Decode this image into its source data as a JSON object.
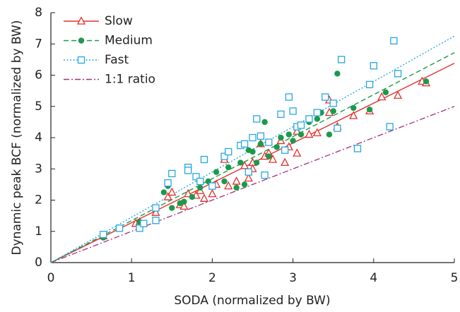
{
  "chart_data": {
    "type": "scatter",
    "xlabel": "SODA (normalized by BW)",
    "ylabel": "Dynamic peak BCF (normalized by BW)",
    "xlim": [
      0,
      5
    ],
    "ylim": [
      0,
      8
    ],
    "xticks": [
      0,
      1,
      2,
      3,
      4,
      5
    ],
    "yticks": [
      0,
      1,
      2,
      3,
      4,
      5,
      6,
      7,
      8
    ],
    "legend": "upper left",
    "series": [
      {
        "name": "Slow",
        "color": "#e3302d",
        "marker": "triangle",
        "linestyle": "solid",
        "x": [
          0.65,
          1.05,
          1.1,
          1.3,
          1.45,
          1.5,
          1.6,
          1.65,
          1.7,
          1.8,
          1.85,
          1.9,
          2.0,
          2.05,
          2.15,
          2.2,
          2.3,
          2.4,
          2.45,
          2.5,
          2.5,
          2.6,
          2.65,
          2.7,
          2.75,
          2.85,
          2.9,
          2.95,
          3.05,
          3.05,
          3.2,
          3.3,
          3.45,
          3.45,
          3.55,
          3.75,
          3.95,
          4.1,
          4.3,
          4.6,
          4.65
        ],
        "values": [
          0.85,
          1.25,
          1.3,
          1.6,
          2.1,
          2.25,
          1.85,
          1.8,
          2.2,
          2.15,
          2.3,
          2.05,
          2.2,
          2.5,
          3.3,
          2.45,
          2.6,
          3.1,
          2.7,
          3.2,
          3.0,
          3.8,
          3.4,
          3.5,
          3.3,
          3.9,
          3.2,
          3.7,
          4.2,
          3.5,
          4.1,
          4.15,
          5.2,
          4.8,
          4.35,
          4.7,
          4.85,
          5.3,
          5.35,
          5.8,
          5.75
        ],
        "fit": {
          "x": [
            0,
            5
          ],
          "values": [
            0,
            6.38
          ]
        }
      },
      {
        "name": "Medium",
        "color": "#1b9a4a",
        "marker": "circle",
        "linestyle": "dashed",
        "x": [
          0.65,
          1.1,
          1.15,
          1.4,
          1.45,
          1.5,
          1.6,
          1.65,
          1.75,
          1.8,
          1.85,
          1.95,
          2.05,
          2.15,
          2.2,
          2.3,
          2.35,
          2.4,
          2.45,
          2.5,
          2.55,
          2.6,
          2.65,
          2.7,
          2.8,
          2.85,
          2.95,
          3.0,
          3.1,
          3.2,
          3.3,
          3.35,
          3.45,
          3.5,
          3.55,
          3.75,
          3.95,
          4.15,
          4.65
        ],
        "values": [
          0.8,
          1.3,
          1.25,
          2.25,
          2.45,
          1.75,
          1.9,
          1.95,
          2.1,
          2.75,
          2.4,
          2.6,
          2.9,
          2.6,
          3.05,
          2.4,
          3.2,
          2.5,
          3.6,
          3.55,
          3.2,
          3.8,
          4.5,
          3.4,
          3.7,
          4.0,
          4.1,
          3.9,
          4.1,
          4.5,
          4.6,
          4.8,
          4.1,
          4.85,
          6.05,
          4.95,
          4.9,
          5.45,
          5.8
        ],
        "fit": {
          "x": [
            0,
            5
          ],
          "values": [
            0,
            6.72
          ]
        }
      },
      {
        "name": "Fast",
        "color": "#27a7df",
        "marker": "square",
        "linestyle": "dotted",
        "x": [
          0.65,
          0.85,
          1.1,
          1.15,
          1.3,
          1.3,
          1.5,
          1.45,
          1.7,
          1.7,
          1.8,
          1.85,
          1.9,
          2.0,
          2.15,
          2.2,
          2.35,
          2.4,
          2.45,
          2.5,
          2.55,
          2.6,
          2.65,
          2.7,
          2.85,
          2.9,
          2.95,
          3.0,
          3.05,
          3.1,
          3.2,
          3.3,
          3.4,
          3.5,
          3.55,
          3.6,
          3.8,
          3.95,
          4.0,
          4.2,
          4.25,
          4.3
        ],
        "values": [
          0.9,
          1.1,
          1.1,
          1.25,
          1.75,
          1.35,
          2.85,
          2.55,
          3.05,
          2.95,
          2.75,
          2.6,
          3.3,
          2.45,
          3.4,
          3.55,
          3.75,
          3.8,
          2.9,
          4.0,
          4.6,
          4.05,
          2.8,
          3.85,
          4.75,
          3.6,
          5.3,
          4.85,
          4.35,
          4.4,
          4.6,
          4.8,
          5.3,
          5.1,
          4.3,
          6.5,
          3.65,
          5.7,
          6.3,
          4.35,
          7.1,
          6.05
        ],
        "fit": {
          "x": [
            0,
            5
          ],
          "values": [
            0,
            7.25
          ]
        }
      }
    ],
    "reference_lines": [
      {
        "name": "1:1 ratio",
        "color": "#a2307c",
        "linestyle": "dashdot",
        "x": [
          0,
          5
        ],
        "values": [
          0,
          5
        ]
      }
    ]
  }
}
